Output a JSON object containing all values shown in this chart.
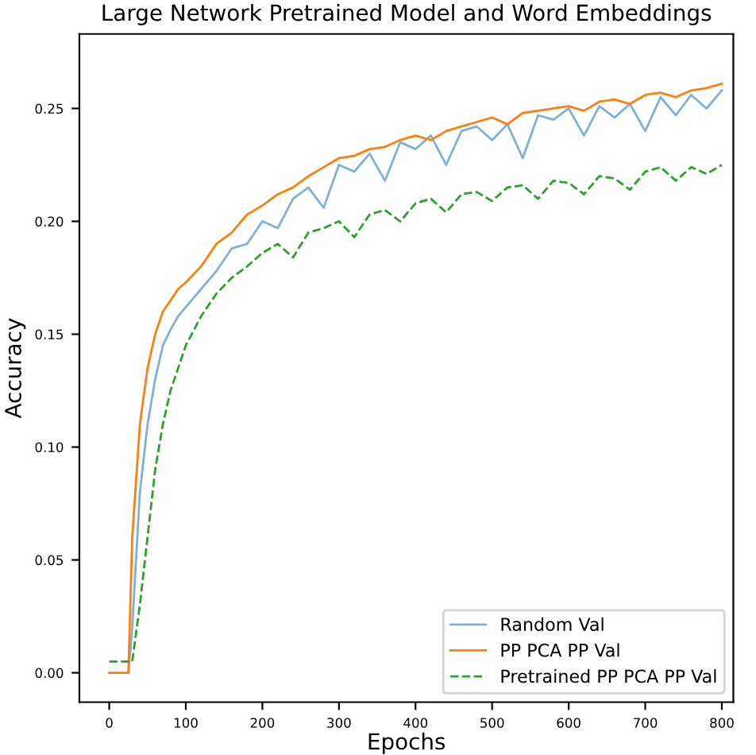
{
  "chart_data": {
    "type": "line",
    "title": "Large Network Pretrained Model and Word Embeddings",
    "xlabel": "Epochs",
    "ylabel": "Accuracy",
    "x": [
      0,
      10,
      20,
      25,
      30,
      40,
      50,
      60,
      70,
      80,
      90,
      100,
      120,
      140,
      160,
      180,
      200,
      220,
      240,
      260,
      280,
      300,
      320,
      340,
      360,
      380,
      400,
      420,
      440,
      460,
      480,
      500,
      520,
      540,
      560,
      580,
      600,
      620,
      640,
      660,
      680,
      700,
      720,
      740,
      760,
      780,
      800
    ],
    "series": [
      {
        "name": "Random Val",
        "color": "#7fb0d8",
        "line_style": "solid",
        "values": [
          null,
          null,
          null,
          0,
          0.02,
          0.08,
          0.11,
          0.13,
          0.145,
          0.152,
          0.158,
          0.162,
          0.17,
          0.178,
          0.188,
          0.19,
          0.2,
          0.197,
          0.21,
          0.215,
          0.206,
          0.225,
          0.222,
          0.23,
          0.218,
          0.235,
          0.232,
          0.238,
          0.225,
          0.24,
          0.242,
          0.236,
          0.243,
          0.228,
          0.247,
          0.245,
          0.25,
          0.238,
          0.251,
          0.246,
          0.252,
          0.24,
          0.255,
          0.247,
          0.256,
          0.25,
          0.258
        ]
      },
      {
        "name": "PP PCA PP Val",
        "color": "#ff7f0e",
        "line_style": "solid",
        "values": [
          0,
          0,
          0,
          0,
          0.06,
          0.11,
          0.135,
          0.15,
          0.16,
          0.165,
          0.17,
          0.173,
          0.18,
          0.19,
          0.195,
          0.203,
          0.207,
          0.212,
          0.215,
          0.22,
          0.224,
          0.228,
          0.229,
          0.232,
          0.233,
          0.236,
          0.238,
          0.236,
          0.24,
          0.242,
          0.244,
          0.246,
          0.243,
          0.248,
          0.249,
          0.25,
          0.251,
          0.249,
          0.253,
          0.254,
          0.252,
          0.256,
          0.257,
          0.255,
          0.258,
          0.259,
          0.261
        ]
      },
      {
        "name": "Pretrained PP PCA PP Val",
        "color": "#2ca02c",
        "line_style": "dashed",
        "values": [
          0.005,
          0.005,
          0.005,
          0.005,
          0.005,
          0.03,
          0.06,
          0.09,
          0.11,
          0.125,
          0.135,
          0.145,
          0.158,
          0.168,
          0.175,
          0.18,
          0.186,
          0.19,
          0.184,
          0.195,
          0.197,
          0.2,
          0.193,
          0.203,
          0.205,
          0.2,
          0.208,
          0.21,
          0.204,
          0.212,
          0.213,
          0.209,
          0.215,
          0.216,
          0.21,
          0.218,
          0.217,
          0.212,
          0.22,
          0.219,
          0.214,
          0.222,
          0.224,
          0.218,
          0.224,
          0.221,
          0.225
        ]
      }
    ],
    "xlim": [
      -39,
      815
    ],
    "ylim": [
      -0.013,
      0.283
    ],
    "xticks": [
      0,
      100,
      200,
      300,
      400,
      500,
      600,
      700,
      800
    ],
    "yticks": [
      {
        "value": 0,
        "label": "0.00"
      },
      {
        "value": 0.05,
        "label": "0.05"
      },
      {
        "value": 0.1,
        "label": "0.10"
      },
      {
        "value": 0.15,
        "label": "0.15"
      },
      {
        "value": 0.2,
        "label": "0.20"
      },
      {
        "value": 0.25,
        "label": "0.25"
      }
    ],
    "legend": "lower right",
    "grid": false
  }
}
